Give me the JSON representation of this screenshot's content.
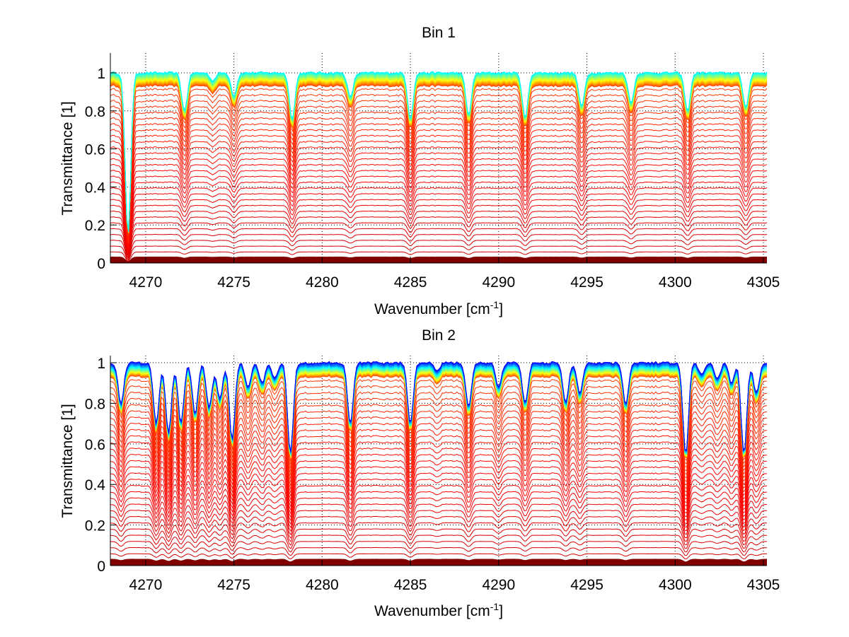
{
  "chart_data": [
    {
      "type": "line",
      "title": "Bin 1",
      "xlabel": "Wavenumber [cm",
      "xlabel_sup": "-1",
      "xlabel_end": "]",
      "ylabel": "Transmittance [1]",
      "xlim": [
        4268.0,
        4305.2
      ],
      "ylim": [
        0,
        1.104
      ],
      "xticks": [
        4270,
        4275,
        4280,
        4285,
        4290,
        4295,
        4300,
        4305
      ],
      "xtick_labels": [
        "4270",
        "4275",
        "4280",
        "4285",
        "4290",
        "4295",
        "4300",
        "4305"
      ],
      "yticks": [
        0,
        0.2,
        0.4,
        0.6,
        0.8,
        1
      ],
      "ytick_labels": [
        "0",
        "0.2",
        "0.4",
        "0.6",
        "0.8",
        "1"
      ],
      "grid": "dotted",
      "colormap": "jet (family of spectra, colored by baseline level)",
      "series_count": 60,
      "baseline_levels_range": [
        0.0,
        1.0
      ],
      "absorption_lines": [
        {
          "x": 4269.0,
          "depth": 0.85
        },
        {
          "x": 4272.2,
          "depth": 0.2
        },
        {
          "x": 4273.8,
          "depth": 0.04
        },
        {
          "x": 4275.0,
          "depth": 0.12
        },
        {
          "x": 4278.3,
          "depth": 0.24
        },
        {
          "x": 4281.6,
          "depth": 0.13
        },
        {
          "x": 4285.0,
          "depth": 0.24
        },
        {
          "x": 4288.3,
          "depth": 0.22
        },
        {
          "x": 4291.5,
          "depth": 0.24
        },
        {
          "x": 4294.7,
          "depth": 0.18
        },
        {
          "x": 4297.5,
          "depth": 0.16
        },
        {
          "x": 4300.7,
          "depth": 0.2
        },
        {
          "x": 4304.0,
          "depth": 0.18
        }
      ]
    },
    {
      "type": "line",
      "title": "Bin 2",
      "xlabel": "Wavenumber [cm",
      "xlabel_sup": "-1",
      "xlabel_end": "]",
      "ylabel": "Transmittance [1]",
      "xlim": [
        4268.0,
        4305.2
      ],
      "ylim": [
        0,
        1.035
      ],
      "xticks": [
        4270,
        4275,
        4280,
        4285,
        4290,
        4295,
        4300,
        4305
      ],
      "xtick_labels": [
        "4270",
        "4275",
        "4280",
        "4285",
        "4290",
        "4295",
        "4300",
        "4305"
      ],
      "yticks": [
        0,
        0.2,
        0.4,
        0.6,
        0.8,
        1
      ],
      "ytick_labels": [
        "0",
        "0.2",
        "0.4",
        "0.6",
        "0.8",
        "1"
      ],
      "grid": "dotted",
      "colormap": "jet (family of spectra, colored by baseline level)",
      "series_count": 60,
      "baseline_levels_range": [
        0.0,
        1.0
      ],
      "absorption_lines": [
        {
          "x": 4268.6,
          "depth": 0.2
        },
        {
          "x": 4270.6,
          "depth": 0.3
        },
        {
          "x": 4271.3,
          "depth": 0.35
        },
        {
          "x": 4272.0,
          "depth": 0.3
        },
        {
          "x": 4272.8,
          "depth": 0.25
        },
        {
          "x": 4273.6,
          "depth": 0.22
        },
        {
          "x": 4274.2,
          "depth": 0.18
        },
        {
          "x": 4274.9,
          "depth": 0.38
        },
        {
          "x": 4275.8,
          "depth": 0.12
        },
        {
          "x": 4276.6,
          "depth": 0.1
        },
        {
          "x": 4277.3,
          "depth": 0.08
        },
        {
          "x": 4278.2,
          "depth": 0.45
        },
        {
          "x": 4281.6,
          "depth": 0.3
        },
        {
          "x": 4285.0,
          "depth": 0.3
        },
        {
          "x": 4286.5,
          "depth": 0.04
        },
        {
          "x": 4288.3,
          "depth": 0.22
        },
        {
          "x": 4290.0,
          "depth": 0.12
        },
        {
          "x": 4291.5,
          "depth": 0.2
        },
        {
          "x": 4293.8,
          "depth": 0.2
        },
        {
          "x": 4294.6,
          "depth": 0.15
        },
        {
          "x": 4297.2,
          "depth": 0.2
        },
        {
          "x": 4300.6,
          "depth": 0.45
        },
        {
          "x": 4301.5,
          "depth": 0.06
        },
        {
          "x": 4302.4,
          "depth": 0.08
        },
        {
          "x": 4303.2,
          "depth": 0.1
        },
        {
          "x": 4303.9,
          "depth": 0.45
        },
        {
          "x": 4304.6,
          "depth": 0.15
        }
      ]
    }
  ]
}
